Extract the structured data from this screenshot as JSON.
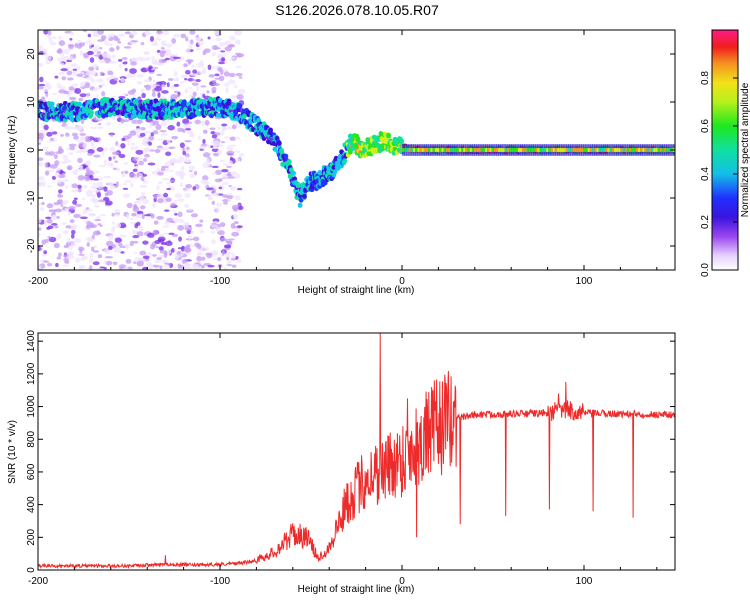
{
  "title": "S126.2026.078.10.05.R07",
  "chart_data": [
    {
      "type": "heatmap",
      "xlabel": "Height of straight line (km)",
      "ylabel": "Frequency (Hz)",
      "xlim": [
        -200,
        150
      ],
      "ylim": [
        -25,
        25
      ],
      "xticks": [
        -200,
        -100,
        0,
        100
      ],
      "yticks": [
        -20,
        -10,
        0,
        10,
        20
      ],
      "colorbar": {
        "label": "Normalized spectral amplitude",
        "range": [
          0.0,
          1.0
        ],
        "ticks": [
          "0.0",
          "0.2",
          "0.4",
          "0.6",
          "0.8"
        ],
        "tick_values": [
          0.0,
          0.2,
          0.4,
          0.6,
          0.8
        ]
      },
      "ridge": [
        {
          "x": -200,
          "f": 8
        },
        {
          "x": -180,
          "f": 8
        },
        {
          "x": -160,
          "f": 9
        },
        {
          "x": -140,
          "f": 8.5
        },
        {
          "x": -120,
          "f": 8.5
        },
        {
          "x": -100,
          "f": 9
        },
        {
          "x": -90,
          "f": 8
        },
        {
          "x": -80,
          "f": 5
        },
        {
          "x": -70,
          "f": 2
        },
        {
          "x": -62,
          "f": -4
        },
        {
          "x": -56,
          "f": -10
        },
        {
          "x": -52,
          "f": -7
        },
        {
          "x": -45,
          "f": -6
        },
        {
          "x": -38,
          "f": -4
        },
        {
          "x": -32,
          "f": -1
        },
        {
          "x": -27,
          "f": 2
        },
        {
          "x": -22,
          "f": 0
        },
        {
          "x": -15,
          "f": 1
        },
        {
          "x": -10,
          "f": 2
        },
        {
          "x": -5,
          "f": 1
        },
        {
          "x": 0,
          "f": 0.5
        },
        {
          "x": 10,
          "f": 0
        },
        {
          "x": 50,
          "f": 0
        },
        {
          "x": 100,
          "f": 0
        },
        {
          "x": 150,
          "f": 0
        }
      ]
    },
    {
      "type": "line",
      "xlabel": "Height of straight line (km)",
      "ylabel": "SNR (10 * v/v)",
      "xlim": [
        -200,
        150
      ],
      "ylim": [
        0,
        1450
      ],
      "xticks": [
        -200,
        -100,
        0,
        100
      ],
      "yticks": [
        0,
        200,
        400,
        600,
        800,
        1000,
        1200,
        1400
      ],
      "color": "#ee2b2b",
      "envelope": [
        {
          "x": -200,
          "y": 25
        },
        {
          "x": -150,
          "y": 25
        },
        {
          "x": -130,
          "y": 35
        },
        {
          "x": -110,
          "y": 30
        },
        {
          "x": -90,
          "y": 40
        },
        {
          "x": -80,
          "y": 60
        },
        {
          "x": -70,
          "y": 110
        },
        {
          "x": -60,
          "y": 220
        },
        {
          "x": -52,
          "y": 200
        },
        {
          "x": -46,
          "y": 70
        },
        {
          "x": -40,
          "y": 140
        },
        {
          "x": -30,
          "y": 420
        },
        {
          "x": -20,
          "y": 560
        },
        {
          "x": -10,
          "y": 620
        },
        {
          "x": 0,
          "y": 680
        },
        {
          "x": 10,
          "y": 790
        },
        {
          "x": 20,
          "y": 880
        },
        {
          "x": 30,
          "y": 930
        },
        {
          "x": 40,
          "y": 950
        },
        {
          "x": 60,
          "y": 955
        },
        {
          "x": 80,
          "y": 960
        },
        {
          "x": 90,
          "y": 980
        },
        {
          "x": 100,
          "y": 960
        },
        {
          "x": 120,
          "y": 955
        },
        {
          "x": 150,
          "y": 950
        }
      ],
      "dropouts": [
        {
          "x": 32,
          "y": 280
        },
        {
          "x": 57,
          "y": 330
        },
        {
          "x": 81,
          "y": 370
        },
        {
          "x": 105,
          "y": 360
        },
        {
          "x": 127,
          "y": 320
        },
        {
          "x": 8,
          "y": 200
        }
      ],
      "spikes": [
        {
          "x": -12,
          "y": 1450
        },
        {
          "x": 3,
          "y": 1050
        },
        {
          "x": 90,
          "y": 1150
        },
        {
          "x": 86,
          "y": 1080
        },
        {
          "x": -130,
          "y": 90
        }
      ]
    }
  ]
}
